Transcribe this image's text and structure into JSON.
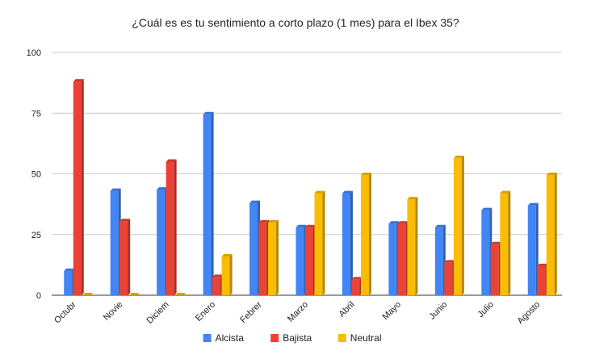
{
  "chart_data": {
    "type": "bar",
    "title": "¿Cuál es es tu sentimiento a corto plazo (1 mes) para el Ibex 35?",
    "xlabel": "",
    "ylabel": "",
    "ylim": [
      0,
      100
    ],
    "yticks": [
      0,
      25,
      50,
      75,
      100
    ],
    "grid": true,
    "legend_position": "bottom",
    "categories": [
      "Octubr",
      "Novie",
      "Diciem",
      "Enero",
      "Febrer",
      "Marzo",
      "Abril",
      "Mayo",
      "Junio",
      "Julio",
      "Agosto"
    ],
    "series": [
      {
        "name": "Alcista",
        "color": "#4285f4",
        "values": [
          10,
          43,
          43.5,
          74.5,
          38,
          28,
          42,
          29.5,
          28,
          35,
          37
        ]
      },
      {
        "name": "Bajista",
        "color": "#ea4335",
        "values": [
          88,
          30.5,
          55,
          7.5,
          30,
          28,
          6.5,
          29.5,
          13.5,
          21,
          12
        ]
      },
      {
        "name": "Neutral",
        "color": "#fbbc04",
        "values": [
          0,
          0,
          0,
          16,
          30,
          42,
          49.5,
          39.5,
          56.5,
          42,
          49.5
        ]
      }
    ]
  }
}
